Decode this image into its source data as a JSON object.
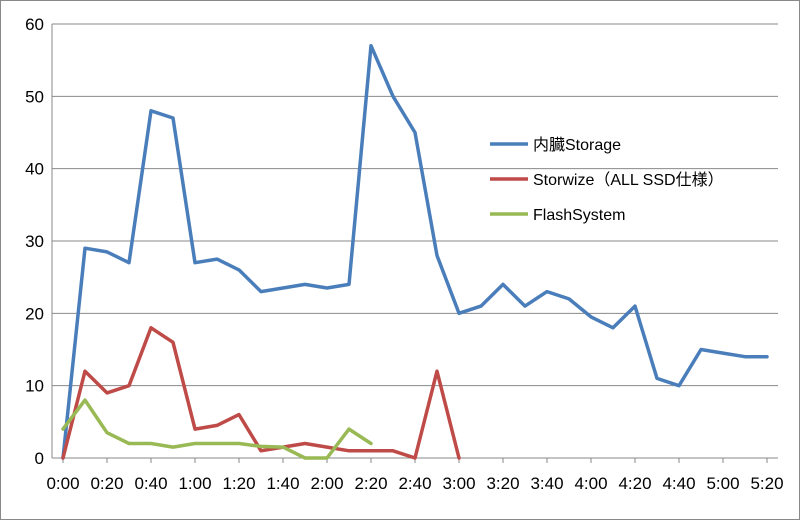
{
  "chart_data": {
    "type": "line",
    "title": "",
    "xlabel": "",
    "ylabel": "",
    "ylim": [
      0,
      60
    ],
    "yticks": [
      0,
      10,
      20,
      30,
      40,
      50,
      60
    ],
    "x_unit": "minutes",
    "x_step": 10,
    "xticks": [
      "0:00",
      "0:20",
      "0:40",
      "1:00",
      "1:20",
      "1:40",
      "2:00",
      "2:20",
      "2:40",
      "3:00",
      "3:20",
      "3:40",
      "4:00",
      "4:20",
      "4:40",
      "5:00",
      "5:20"
    ],
    "grid": "horizontal",
    "legend_position": "right",
    "series": [
      {
        "name": "内臓Storage",
        "color": "#4a7ebb",
        "values": [
          0,
          29,
          28.5,
          27,
          48,
          47,
          27,
          27.5,
          26,
          23,
          23.5,
          24,
          23.5,
          24,
          57,
          50,
          45,
          28,
          20,
          21,
          24,
          21,
          23,
          22,
          19.5,
          18,
          21,
          11,
          10,
          15,
          14.5,
          14,
          14
        ]
      },
      {
        "name": "Storwize（ALL SSD仕様）",
        "color": "#be4b48",
        "values": [
          0,
          12,
          9,
          10,
          18,
          16,
          4,
          4.5,
          6,
          1,
          1.5,
          2,
          1.5,
          1,
          1,
          1,
          0,
          12,
          0
        ]
      },
      {
        "name": "FlashSystem",
        "color": "#98b954",
        "values": [
          4,
          8,
          3.5,
          2,
          2,
          1.5,
          2,
          2,
          2,
          1.6,
          1.5,
          0,
          0,
          4,
          2
        ]
      }
    ]
  }
}
